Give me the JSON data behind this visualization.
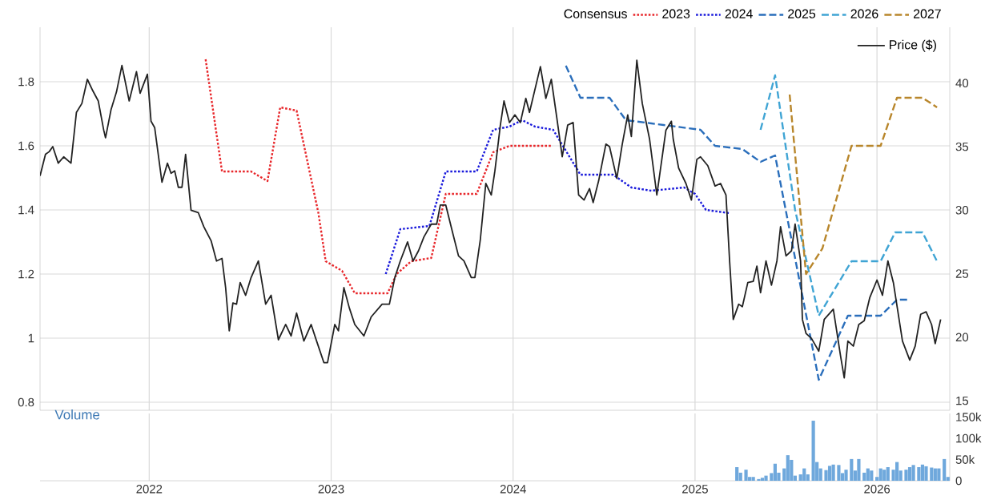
{
  "chart_data": [
    {
      "type": "line",
      "legend_title": "Consensus",
      "legend": "top right",
      "grid": true,
      "tick_labels": "y",
      "xlim": [
        2021.4,
        2026.4
      ],
      "xticks": [
        2022,
        2023,
        2024,
        2025,
        2026
      ],
      "ylim": [
        0.775,
        1.97
      ],
      "yticks": [
        {
          "value": 0.8,
          "label": "0.8"
        },
        1,
        1.2,
        1.4,
        1.6,
        1.8
      ],
      "y2lim": [
        14.25,
        44.4
      ],
      "y2ticks": [
        15,
        20,
        25,
        30,
        35,
        40
      ],
      "series": [
        {
          "name": "2023",
          "color": "#e8262a",
          "line_style": "dotted",
          "x": [
            2022.31,
            2022.4,
            2022.56,
            2022.65,
            2022.72,
            2022.81,
            2022.93,
            2022.97,
            2023.06,
            2023.13,
            2023.31,
            2023.36,
            2023.44,
            2023.55,
            2023.63,
            2023.8,
            2023.89,
            2023.98,
            2024.21
          ],
          "values": [
            1.87,
            1.52,
            1.52,
            1.49,
            1.72,
            1.71,
            1.39,
            1.24,
            1.21,
            1.14,
            1.14,
            1.2,
            1.24,
            1.25,
            1.45,
            1.45,
            1.58,
            1.6,
            1.6
          ]
        },
        {
          "name": "2024",
          "color": "#1a1adb",
          "line_style": "dotted",
          "x": [
            2023.3,
            2023.38,
            2023.54,
            2023.63,
            2023.8,
            2023.89,
            2023.98,
            2024.05,
            2024.12,
            2024.22,
            2024.37,
            2024.55,
            2024.65,
            2024.76,
            2024.94,
            2025.0,
            2025.06,
            2025.19
          ],
          "values": [
            1.2,
            1.34,
            1.35,
            1.52,
            1.52,
            1.65,
            1.66,
            1.68,
            1.66,
            1.65,
            1.51,
            1.51,
            1.47,
            1.46,
            1.47,
            1.45,
            1.4,
            1.39
          ]
        },
        {
          "name": "2025",
          "color": "#2a6ebb",
          "line_style": "dashed",
          "x": [
            2024.29,
            2024.37,
            2024.53,
            2024.62,
            2024.76,
            2025.03,
            2025.11,
            2025.26,
            2025.36,
            2025.44,
            2025.68,
            2025.84,
            2026.02,
            2026.11,
            2026.18
          ],
          "values": [
            1.85,
            1.75,
            1.75,
            1.68,
            1.67,
            1.65,
            1.6,
            1.59,
            1.55,
            1.57,
            0.87,
            1.07,
            1.07,
            1.12,
            1.12
          ]
        },
        {
          "name": "2026",
          "color": "#3fa4d4",
          "line_style": "dashed",
          "x": [
            2025.36,
            2025.44,
            2025.55,
            2025.68,
            2025.86,
            2026.02,
            2026.1,
            2026.25,
            2026.33
          ],
          "values": [
            1.65,
            1.82,
            1.4,
            1.07,
            1.24,
            1.24,
            1.33,
            1.33,
            1.24
          ]
        },
        {
          "name": "2027",
          "color": "#b8862b",
          "line_style": "dashed",
          "x": [
            2025.52,
            2025.61,
            2025.7,
            2025.86,
            2026.02,
            2026.11,
            2026.25,
            2026.33
          ],
          "values": [
            1.76,
            1.2,
            1.28,
            1.6,
            1.6,
            1.75,
            1.75,
            1.72
          ]
        },
        {
          "name": "Price ($)",
          "color": "#222222",
          "line_style": "solid",
          "axis": "y2",
          "x": [
            2021.4,
            2021.43,
            2021.45,
            2021.47,
            2021.5,
            2021.53,
            2021.57,
            2021.6,
            2021.63,
            2021.66,
            2021.69,
            2021.72,
            2021.75,
            2021.76,
            2021.79,
            2021.82,
            2021.85,
            2021.89,
            2021.93,
            2021.95,
            2021.99,
            2022.01,
            2022.03,
            2022.07,
            2022.1,
            2022.12,
            2022.14,
            2022.16,
            2022.18,
            2022.2,
            2022.23,
            2022.27,
            2022.3,
            2022.34,
            2022.37,
            2022.4,
            2022.42,
            2022.44,
            2022.46,
            2022.48,
            2022.5,
            2022.53,
            2022.56,
            2022.6,
            2022.64,
            2022.67,
            2022.71,
            2022.75,
            2022.78,
            2022.81,
            2022.85,
            2022.89,
            2022.92,
            2022.96,
            2022.98,
            2023.02,
            2023.04,
            2023.07,
            2023.1,
            2023.13,
            2023.18,
            2023.22,
            2023.28,
            2023.32,
            2023.35,
            2023.38,
            2023.42,
            2023.45,
            2023.48,
            2023.51,
            2023.55,
            2023.58,
            2023.6,
            2023.63,
            2023.67,
            2023.7,
            2023.73,
            2023.77,
            2023.79,
            2023.82,
            2023.85,
            2023.88,
            2023.9,
            2023.93,
            2023.95,
            2023.98,
            2024.01,
            2024.04,
            2024.07,
            2024.09,
            2024.15,
            2024.18,
            2024.21,
            2024.24,
            2024.27,
            2024.3,
            2024.33,
            2024.36,
            2024.39,
            2024.42,
            2024.44,
            2024.47,
            2024.51,
            2024.53,
            2024.57,
            2024.6,
            2024.63,
            2024.65,
            2024.68,
            2024.71,
            2024.75,
            2024.79,
            2024.84,
            2024.87,
            2024.88,
            2024.91,
            2024.95,
            2024.98,
            2025.01,
            2025.03,
            2025.07,
            2025.11,
            2025.14,
            2025.17,
            2025.19,
            2025.21,
            2025.24,
            2025.26,
            2025.29,
            2025.32,
            2025.34,
            2025.36,
            2025.39,
            2025.42,
            2025.45,
            2025.47,
            2025.5,
            2025.53,
            2025.55,
            2025.58,
            2025.59,
            2025.61,
            2025.64,
            2025.68,
            2025.71,
            2025.76,
            2025.8,
            2025.82,
            2025.84,
            2025.87,
            2025.9,
            2025.93,
            2025.96,
            2026.0,
            2026.03,
            2026.06,
            2026.09,
            2026.14,
            2026.18,
            2026.21,
            2026.24,
            2026.27,
            2026.3,
            2026.32,
            2026.35
          ],
          "values": [
            32.7,
            34.4,
            34.6,
            35.0,
            33.7,
            34.2,
            33.7,
            37.7,
            38.4,
            40.3,
            39.4,
            38.6,
            36.3,
            35.7,
            37.9,
            39.3,
            41.4,
            38.6,
            40.9,
            39.2,
            40.7,
            37.0,
            36.5,
            32.2,
            33.7,
            32.9,
            33.1,
            31.8,
            31.8,
            34.4,
            30.0,
            29.8,
            28.7,
            27.6,
            26.0,
            26.2,
            23.9,
            20.5,
            22.7,
            22.6,
            24.3,
            23.3,
            24.7,
            26.0,
            22.6,
            23.3,
            19.8,
            21.0,
            20.1,
            21.9,
            19.7,
            21.0,
            19.7,
            18.0,
            18.0,
            21.0,
            20.5,
            23.9,
            22.3,
            21.0,
            20.1,
            21.6,
            22.6,
            22.6,
            24.7,
            26.0,
            27.5,
            26.0,
            26.8,
            27.9,
            28.9,
            28.9,
            30.4,
            30.4,
            28.1,
            26.4,
            26.0,
            24.7,
            24.7,
            27.7,
            32.1,
            31.2,
            33.1,
            36.7,
            38.6,
            36.9,
            37.5,
            36.9,
            38.8,
            37.7,
            41.3,
            38.8,
            40.3,
            37.3,
            34.2,
            36.7,
            36.9,
            31.2,
            30.8,
            31.7,
            30.6,
            32.3,
            35.2,
            35.0,
            32.5,
            35.2,
            37.5,
            35.8,
            41.8,
            38.4,
            35.6,
            31.2,
            36.3,
            37.0,
            35.6,
            33.3,
            32.1,
            30.8,
            34.0,
            34.2,
            33.5,
            31.9,
            32.1,
            31.2,
            26.0,
            21.4,
            22.6,
            22.4,
            24.3,
            24.4,
            25.6,
            23.5,
            26.0,
            24.1,
            26.0,
            28.7,
            26.4,
            26.8,
            28.9,
            26.0,
            21.4,
            20.3,
            19.9,
            18.9,
            21.4,
            22.2,
            18.5,
            16.8,
            19.7,
            19.3,
            21.0,
            21.3,
            23.1,
            24.5,
            23.3,
            26.0,
            24.3,
            19.7,
            18.2,
            19.3,
            21.8,
            22.0,
            21.0,
            19.5,
            21.4
          ]
        }
      ]
    },
    {
      "type": "bar",
      "title": "Volume",
      "color": "#6fa8dc",
      "grid": "x",
      "xlim": [
        2021.4,
        2026.4
      ],
      "xticks": [
        2022,
        2023,
        2024,
        2025,
        2026
      ],
      "ylim": [
        0,
        158000
      ],
      "yticks": [
        0,
        {
          "value": 50000,
          "label": "50k"
        },
        {
          "value": 100000,
          "label": "100k"
        },
        {
          "value": 150000,
          "label": "150k"
        }
      ],
      "x": [
        2025.23,
        2025.25,
        2025.28,
        2025.3,
        2025.32,
        2025.35,
        2025.37,
        2025.39,
        2025.42,
        2025.44,
        2025.46,
        2025.49,
        2025.51,
        2025.53,
        2025.55,
        2025.58,
        2025.6,
        2025.62,
        2025.65,
        2025.67,
        2025.69,
        2025.72,
        2025.74,
        2025.76,
        2025.79,
        2025.81,
        2025.83,
        2025.86,
        2025.88,
        2025.9,
        2025.93,
        2025.95,
        2025.97,
        2026.0,
        2026.02,
        2026.04,
        2026.06,
        2026.09,
        2026.11,
        2026.13,
        2026.16,
        2026.18,
        2026.2,
        2026.23,
        2026.25,
        2026.27,
        2026.3,
        2026.32,
        2026.34,
        2026.37,
        2026.39
      ],
      "values": [
        32000,
        19000,
        26000,
        9000,
        9000,
        4000,
        7000,
        12000,
        18000,
        40000,
        19000,
        29000,
        60000,
        49000,
        12000,
        15000,
        29000,
        15000,
        141000,
        44000,
        29000,
        25000,
        35000,
        38000,
        37000,
        18000,
        26000,
        51000,
        24000,
        51000,
        19000,
        29000,
        24000,
        9000,
        29000,
        26000,
        32000,
        26000,
        44000,
        24000,
        26000,
        32000,
        37000,
        32000,
        38000,
        34000,
        31000,
        29000,
        29000,
        51000,
        9000
      ]
    }
  ]
}
